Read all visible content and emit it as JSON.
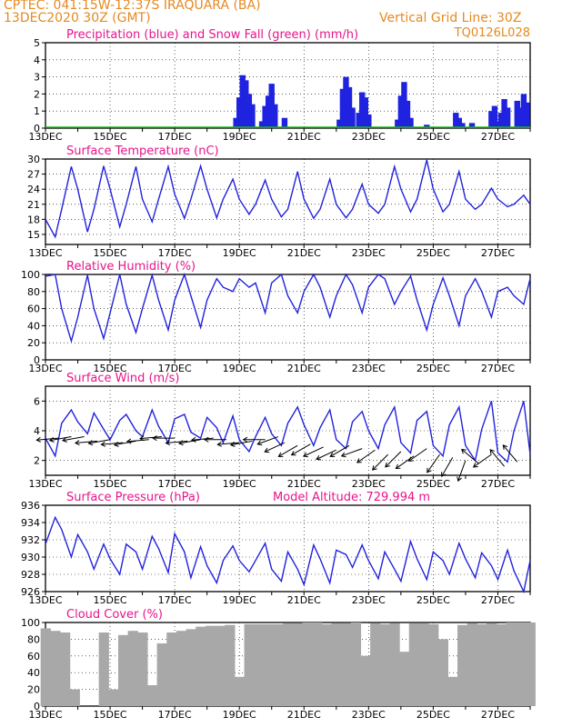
{
  "header": {
    "line1": "CPTEC:   041:15W-12:37S   IRAQUARA (BA)",
    "line2": "13DEC2020 30Z (GMT)",
    "grid_note": "Vertical Grid Line: 30Z",
    "code": "TQ0126L028"
  },
  "colors": {
    "header": "#e58a22",
    "title": "#e8148c",
    "line": "#2222dd",
    "bar": "#1f23e0",
    "snow": "#18b818",
    "cloud": "#a8a8a8"
  },
  "x_ticks": [
    "13DEC",
    "15DEC",
    "17DEC",
    "19DEC",
    "21DEC",
    "23DEC",
    "25DEC",
    "27DEC"
  ],
  "chart_data": [
    {
      "type": "bar",
      "title": "Precipitation (blue) and Snow Fall (green) (mm/h)",
      "ylim": [
        0,
        5
      ],
      "yticks": [
        "0",
        "1",
        "2",
        "3",
        "4",
        "5"
      ],
      "series": [
        {
          "name": "Precipitation (blue)",
          "x": [
            5.9,
            6.0,
            6.1,
            6.2,
            6.3,
            6.4,
            6.7,
            6.8,
            6.9,
            7.0,
            7.1,
            7.4,
            9.1,
            9.2,
            9.3,
            9.4,
            9.5,
            9.7,
            9.8,
            9.9,
            10.0,
            10.9,
            11.0,
            11.1,
            11.2,
            11.3,
            11.8,
            12.7,
            12.8,
            12.9,
            13.2,
            13.8,
            13.9,
            14.0,
            14.1,
            14.2,
            14.3,
            14.6,
            14.7,
            14.8,
            14.9
          ],
          "values": [
            0.6,
            1.8,
            3.1,
            2.8,
            2.0,
            1.4,
            0.4,
            1.3,
            1.9,
            2.6,
            1.4,
            0.6,
            0.5,
            2.3,
            3.0,
            2.4,
            1.2,
            0.9,
            2.1,
            1.8,
            0.8,
            0.5,
            1.9,
            2.7,
            1.6,
            0.6,
            0.2,
            0.9,
            0.6,
            0.3,
            0.3,
            1.0,
            1.3,
            0.4,
            0.9,
            1.7,
            1.2,
            1.6,
            1.2,
            2.0,
            1.5
          ]
        }
      ]
    },
    {
      "type": "line",
      "title": "Surface Temperature (nC)",
      "ylim": [
        13,
        30
      ],
      "yticks": [
        "15",
        "18",
        "21",
        "24",
        "27",
        "30"
      ],
      "series": [
        {
          "name": "",
          "x": [
            0,
            0.3,
            0.5,
            0.8,
            1.0,
            1.3,
            1.5,
            1.8,
            2.0,
            2.3,
            2.5,
            2.8,
            3.0,
            3.3,
            3.5,
            3.8,
            4.0,
            4.3,
            4.5,
            4.8,
            5.0,
            5.3,
            5.5,
            5.8,
            6.0,
            6.3,
            6.5,
            6.8,
            7.0,
            7.3,
            7.5,
            7.8,
            8.0,
            8.3,
            8.5,
            8.8,
            9.0,
            9.3,
            9.5,
            9.8,
            10.0,
            10.3,
            10.5,
            10.8,
            11.0,
            11.3,
            11.5,
            11.8,
            12.0,
            12.3,
            12.5,
            12.8,
            13.0,
            13.3,
            13.5,
            13.8,
            14.0,
            14.3,
            14.5,
            14.8,
            15.0
          ],
          "values": [
            18,
            14.5,
            20,
            28.5,
            24,
            15.5,
            20,
            28.6,
            24,
            16.5,
            21,
            28.5,
            22,
            17.5,
            22,
            28.5,
            23,
            18.2,
            22,
            28.6,
            24,
            18.3,
            22,
            26,
            22,
            19,
            21,
            25.8,
            22,
            18.5,
            20,
            27.5,
            22,
            18.2,
            20,
            26,
            21,
            18.3,
            20,
            25,
            21,
            19.2,
            21,
            28.5,
            24,
            19.5,
            22,
            29.8,
            24,
            19.5,
            21,
            27.5,
            22,
            20,
            21,
            24.2,
            22,
            20.5,
            21,
            22.8,
            21
          ]
        }
      ]
    },
    {
      "type": "line",
      "title": "Relative Humidity (%)",
      "ylim": [
        0,
        100
      ],
      "yticks": [
        "0",
        "20",
        "40",
        "60",
        "80",
        "100"
      ],
      "series": [
        {
          "name": "",
          "x": [
            0,
            0.3,
            0.5,
            0.8,
            1.0,
            1.3,
            1.5,
            1.8,
            2.0,
            2.3,
            2.5,
            2.8,
            3.0,
            3.3,
            3.5,
            3.8,
            4.0,
            4.3,
            4.5,
            4.8,
            5.0,
            5.3,
            5.5,
            5.8,
            6.0,
            6.3,
            6.5,
            6.8,
            7.0,
            7.3,
            7.5,
            7.8,
            8.0,
            8.3,
            8.5,
            8.8,
            9.0,
            9.3,
            9.5,
            9.8,
            10.0,
            10.3,
            10.5,
            10.8,
            11.0,
            11.3,
            11.5,
            11.8,
            12.0,
            12.3,
            12.5,
            12.8,
            13.0,
            13.3,
            13.5,
            13.8,
            14.0,
            14.3,
            14.5,
            14.8,
            15.0
          ],
          "values": [
            98,
            100,
            60,
            22,
            50,
            99,
            60,
            25,
            55,
            100,
            65,
            32,
            60,
            99,
            70,
            35,
            70,
            100,
            75,
            38,
            70,
            95,
            85,
            80,
            95,
            85,
            90,
            55,
            90,
            100,
            75,
            55,
            80,
            100,
            85,
            50,
            75,
            100,
            88,
            55,
            85,
            100,
            95,
            65,
            80,
            98,
            70,
            35,
            65,
            96,
            75,
            40,
            75,
            95,
            80,
            50,
            80,
            85,
            75,
            65,
            95
          ]
        }
      ]
    },
    {
      "type": "line",
      "title": "Surface Wind (m/s)",
      "ylim": [
        1,
        7
      ],
      "yticks": [
        "2",
        "4",
        "6"
      ],
      "series": [
        {
          "name": "",
          "x": [
            0,
            0.3,
            0.5,
            0.8,
            1.0,
            1.3,
            1.5,
            1.8,
            2.0,
            2.3,
            2.5,
            2.8,
            3.0,
            3.3,
            3.5,
            3.8,
            4.0,
            4.3,
            4.5,
            4.8,
            5.0,
            5.3,
            5.5,
            5.8,
            6.0,
            6.3,
            6.5,
            6.8,
            7.0,
            7.3,
            7.5,
            7.8,
            8.0,
            8.3,
            8.5,
            8.8,
            9.0,
            9.3,
            9.5,
            9.8,
            10.0,
            10.3,
            10.5,
            10.8,
            11.0,
            11.3,
            11.5,
            11.8,
            12.0,
            12.3,
            12.5,
            12.8,
            13.0,
            13.3,
            13.5,
            13.8,
            14.0,
            14.3,
            14.5,
            14.8,
            15.0
          ],
          "values": [
            3.5,
            2.3,
            4.5,
            5.4,
            4.6,
            3.8,
            5.2,
            4.1,
            3.4,
            4.7,
            5.1,
            4.0,
            3.6,
            5.4,
            4.3,
            3.2,
            4.8,
            5.1,
            3.9,
            3.5,
            4.9,
            4.2,
            3.2,
            5.0,
            3.4,
            2.6,
            3.6,
            4.9,
            3.8,
            3.0,
            4.5,
            5.6,
            4.4,
            3.0,
            4.2,
            5.4,
            3.4,
            2.8,
            4.6,
            5.3,
            4.0,
            2.8,
            4.4,
            5.6,
            3.2,
            2.5,
            4.7,
            5.3,
            3.0,
            2.3,
            4.4,
            5.6,
            3.0,
            2.0,
            4.1,
            6.0,
            2.5,
            1.9,
            4.0,
            6.0,
            2.4
          ]
        }
      ],
      "wind_arrows": {
        "x": [
          0.4,
          0.8,
          1.2,
          1.6,
          2.0,
          2.4,
          2.8,
          3.2,
          3.6,
          4.0,
          4.4,
          4.8,
          5.2,
          5.6,
          6.0,
          6.4,
          6.8,
          7.2,
          7.4,
          7.8,
          8.2,
          8.6,
          9.0,
          9.4,
          9.8,
          10.2,
          10.6,
          11.0,
          11.4,
          11.8,
          12.2,
          12.6,
          13.0,
          13.4,
          13.8,
          14.2,
          14.6
        ],
        "speed": [
          3.5,
          3.6,
          3.6,
          3.3,
          3.4,
          3.2,
          3.3,
          3.4,
          3.6,
          3.5,
          3.3,
          3.4,
          3.5,
          3.4,
          3.2,
          3.3,
          3.4,
          3.6,
          3.2,
          3.0,
          3.1,
          2.9,
          2.7,
          3.0,
          2.8,
          2.7,
          2.4,
          2.6,
          2.3,
          2.8,
          2.4,
          2.2,
          2.0,
          1.8,
          2.4,
          1.6,
          1.9
        ],
        "angle_deg": [
          185,
          190,
          190,
          185,
          190,
          185,
          190,
          185,
          185,
          180,
          185,
          190,
          185,
          180,
          185,
          190,
          180,
          200,
          205,
          210,
          210,
          205,
          205,
          210,
          200,
          215,
          225,
          225,
          215,
          215,
          235,
          240,
          250,
          140,
          215,
          130,
          130
        ]
      }
    },
    {
      "type": "line",
      "title": "Surface Pressure (hPa)",
      "subtitle": "Model Altitude: 729.994  m",
      "ylim": [
        926,
        936
      ],
      "yticks": [
        "926",
        "928",
        "930",
        "932",
        "934",
        "936"
      ],
      "series": [
        {
          "name": "",
          "x": [
            0,
            0.3,
            0.5,
            0.8,
            1.0,
            1.3,
            1.5,
            1.8,
            2.0,
            2.3,
            2.5,
            2.8,
            3.0,
            3.3,
            3.5,
            3.8,
            4.0,
            4.3,
            4.5,
            4.8,
            5.0,
            5.3,
            5.5,
            5.8,
            6.0,
            6.3,
            6.5,
            6.8,
            7.0,
            7.3,
            7.5,
            7.8,
            8.0,
            8.3,
            8.5,
            8.8,
            9.0,
            9.3,
            9.5,
            9.8,
            10.0,
            10.3,
            10.5,
            10.8,
            11.0,
            11.3,
            11.5,
            11.8,
            12.0,
            12.3,
            12.5,
            12.8,
            13.0,
            13.3,
            13.5,
            13.8,
            14.0,
            14.3,
            14.5,
            14.8,
            15.0
          ],
          "values": [
            931.5,
            934.6,
            933.2,
            930.0,
            932.6,
            930.6,
            928.6,
            931.5,
            929.8,
            928.0,
            931.5,
            930.6,
            928.6,
            932.4,
            931.0,
            928.2,
            932.7,
            930.6,
            927.6,
            931.2,
            929.0,
            927.0,
            929.6,
            931.3,
            929.6,
            928.3,
            929.6,
            931.6,
            928.6,
            927.2,
            930.6,
            928.6,
            926.8,
            931.4,
            929.8,
            927.0,
            930.8,
            930.3,
            928.8,
            931.4,
            929.6,
            927.5,
            930.6,
            928.6,
            927.2,
            931.8,
            929.8,
            927.4,
            930.6,
            929.6,
            928.0,
            931.6,
            929.8,
            927.6,
            930.5,
            929.0,
            927.4,
            930.8,
            928.4,
            926.0,
            929.6
          ]
        }
      ]
    },
    {
      "type": "bar",
      "title": "Cloud Cover (%)",
      "ylim": [
        0,
        100
      ],
      "yticks": [
        "0",
        "20",
        "40",
        "60",
        "80",
        "100"
      ],
      "series": [
        {
          "name": "",
          "x": [
            0,
            0.3,
            0.6,
            0.9,
            1.2,
            1.5,
            1.8,
            2.1,
            2.4,
            2.7,
            3.0,
            3.3,
            3.6,
            3.9,
            4.2,
            4.5,
            4.8,
            5.1,
            5.4,
            5.7,
            6.0,
            6.3,
            6.6,
            6.9,
            7.2,
            7.5,
            7.8,
            8.1,
            8.4,
            8.7,
            9.0,
            9.3,
            9.6,
            9.9,
            10.2,
            10.5,
            10.8,
            11.1,
            11.4,
            11.7,
            12.0,
            12.3,
            12.6,
            12.9,
            13.2,
            13.5,
            13.8,
            14.1,
            14.4,
            14.7,
            15.0
          ],
          "values": [
            93,
            90,
            88,
            20,
            0,
            0,
            88,
            20,
            85,
            90,
            88,
            25,
            75,
            88,
            90,
            92,
            95,
            96,
            96,
            97,
            35,
            98,
            98,
            98,
            98,
            99,
            99,
            100,
            100,
            98,
            99,
            99,
            100,
            60,
            99,
            98,
            99,
            65,
            99,
            99,
            98,
            80,
            35,
            97,
            99,
            98,
            99,
            98,
            100,
            100,
            100
          ]
        }
      ]
    }
  ]
}
